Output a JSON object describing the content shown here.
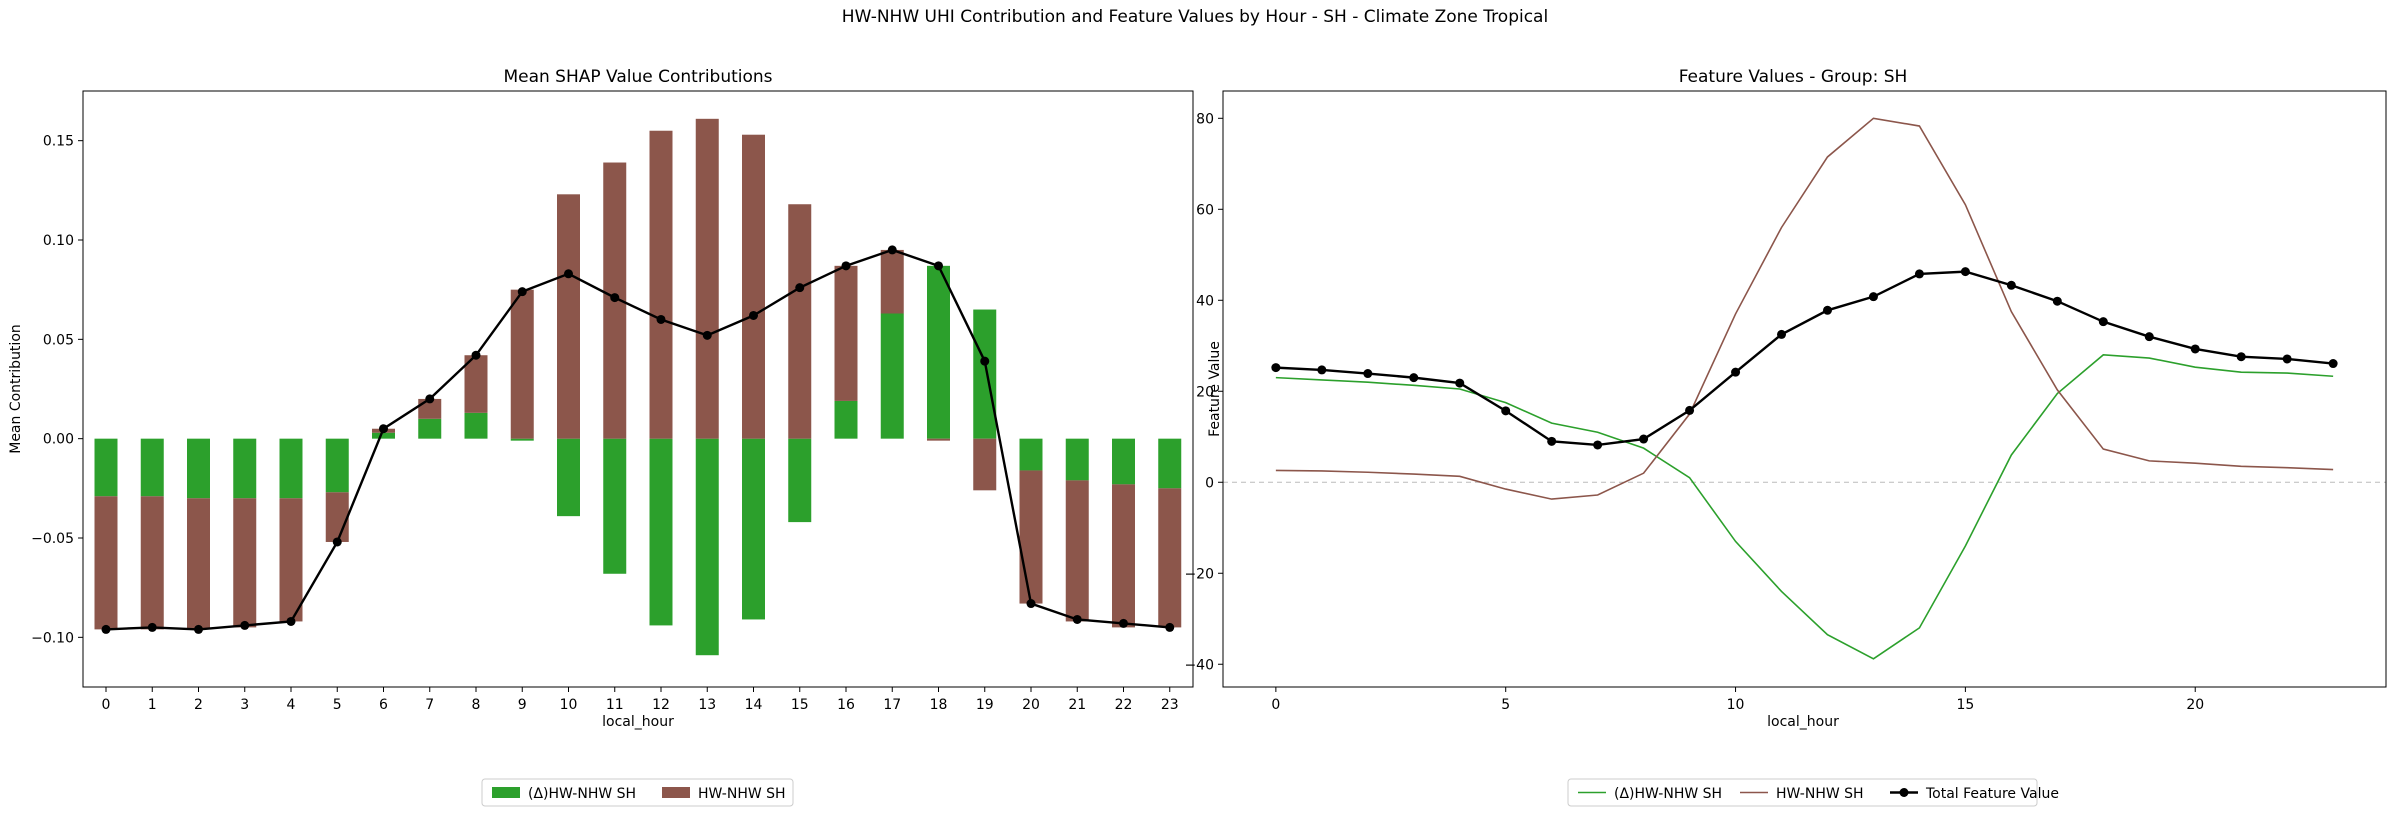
{
  "suptitle": "HW-NHW UHI Contribution and Feature Values by Hour - SH - Climate Zone Tropical",
  "chart_data": [
    {
      "type": "bar",
      "stacked": true,
      "title": "Mean SHAP Value Contributions",
      "xlabel": "local_hour",
      "ylabel": "Mean Contribution",
      "categories": [
        "0",
        "1",
        "2",
        "3",
        "4",
        "5",
        "6",
        "7",
        "8",
        "9",
        "10",
        "11",
        "12",
        "13",
        "14",
        "15",
        "16",
        "17",
        "18",
        "19",
        "20",
        "21",
        "22",
        "23"
      ],
      "ylim": [
        -0.125,
        0.175
      ],
      "yticks": [
        -0.1,
        -0.05,
        0.0,
        0.05,
        0.1,
        0.15
      ],
      "ytick_labels": [
        "−0.10",
        "−0.05",
        "0.00",
        "0.05",
        "0.10",
        "0.15"
      ],
      "series": [
        {
          "name": "(Δ)HW-NHW SH",
          "color": "#2ca02c",
          "values": [
            -0.029,
            -0.029,
            -0.03,
            -0.03,
            -0.03,
            -0.027,
            0.003,
            0.01,
            0.013,
            -0.001,
            -0.039,
            -0.068,
            -0.094,
            -0.109,
            -0.091,
            -0.042,
            0.019,
            0.063,
            0.087,
            0.065,
            -0.016,
            -0.021,
            -0.023,
            -0.025
          ]
        },
        {
          "name": "HW-NHW SH",
          "color": "#8c564b",
          "values": [
            -0.067,
            -0.067,
            -0.066,
            -0.065,
            -0.062,
            -0.025,
            0.002,
            0.01,
            0.029,
            0.075,
            0.123,
            0.139,
            0.155,
            0.161,
            0.153,
            0.118,
            0.068,
            0.032,
            -0.001,
            -0.026,
            -0.067,
            -0.071,
            -0.072,
            -0.07
          ]
        }
      ],
      "total_line": {
        "color": "#000000",
        "values": [
          -0.096,
          -0.095,
          -0.096,
          -0.094,
          -0.092,
          -0.052,
          0.005,
          0.02,
          0.042,
          0.074,
          0.083,
          0.071,
          0.06,
          0.052,
          0.062,
          0.076,
          0.087,
          0.095,
          0.087,
          0.039,
          -0.083,
          -0.091,
          -0.093,
          -0.095
        ]
      },
      "legend": {
        "placement": "bottom-center",
        "columns": 2
      }
    },
    {
      "type": "line",
      "title": "Feature Values - Group: SH",
      "xlabel": "local_hour",
      "ylabel": "Feature Value",
      "x": [
        0,
        1,
        2,
        3,
        4,
        5,
        6,
        7,
        8,
        9,
        10,
        11,
        12,
        13,
        14,
        15,
        16,
        17,
        18,
        19,
        20,
        21,
        22,
        23
      ],
      "xlim": [
        -1.15,
        24.15
      ],
      "ylim": [
        -45,
        86
      ],
      "xticks": [
        0,
        5,
        10,
        15,
        20
      ],
      "xtick_labels": [
        "0",
        "5",
        "10",
        "15",
        "20"
      ],
      "yticks": [
        -40,
        -20,
        0,
        20,
        40,
        60,
        80
      ],
      "ytick_labels": [
        "−40",
        "−20",
        "0",
        "20",
        "40",
        "60",
        "80"
      ],
      "zero_line": true,
      "series": [
        {
          "name": "(Δ)HW-NHW SH",
          "color": "#2ca02c",
          "marker": false,
          "values": [
            23,
            22.5,
            22,
            21.3,
            20.5,
            17.5,
            13,
            11,
            7.5,
            1,
            -13,
            -24,
            -33.5,
            -38.8,
            -32,
            -14,
            6,
            19.5,
            28,
            27.3,
            25.3,
            24.2,
            24,
            23.3
          ]
        },
        {
          "name": "HW-NHW SH",
          "color": "#8c564b",
          "marker": false,
          "values": [
            2.6,
            2.5,
            2.2,
            1.8,
            1.3,
            -1.5,
            -3.7,
            -2.8,
            2,
            15,
            37,
            56,
            71.5,
            80,
            78.3,
            61,
            37.5,
            20.3,
            7.3,
            4.7,
            4.2,
            3.5,
            3.2,
            2.8
          ]
        },
        {
          "name": "Total Feature Value",
          "color": "#000000",
          "marker": true,
          "values": [
            25.2,
            24.7,
            23.9,
            23,
            21.8,
            15.7,
            9,
            8.2,
            9.5,
            15.8,
            24.2,
            32.5,
            37.8,
            40.8,
            45.8,
            46.3,
            43.3,
            39.8,
            35.3,
            32,
            29.3,
            27.6,
            27.1,
            26.1
          ]
        }
      ],
      "legend": {
        "placement": "bottom-center",
        "columns": 3
      }
    }
  ]
}
